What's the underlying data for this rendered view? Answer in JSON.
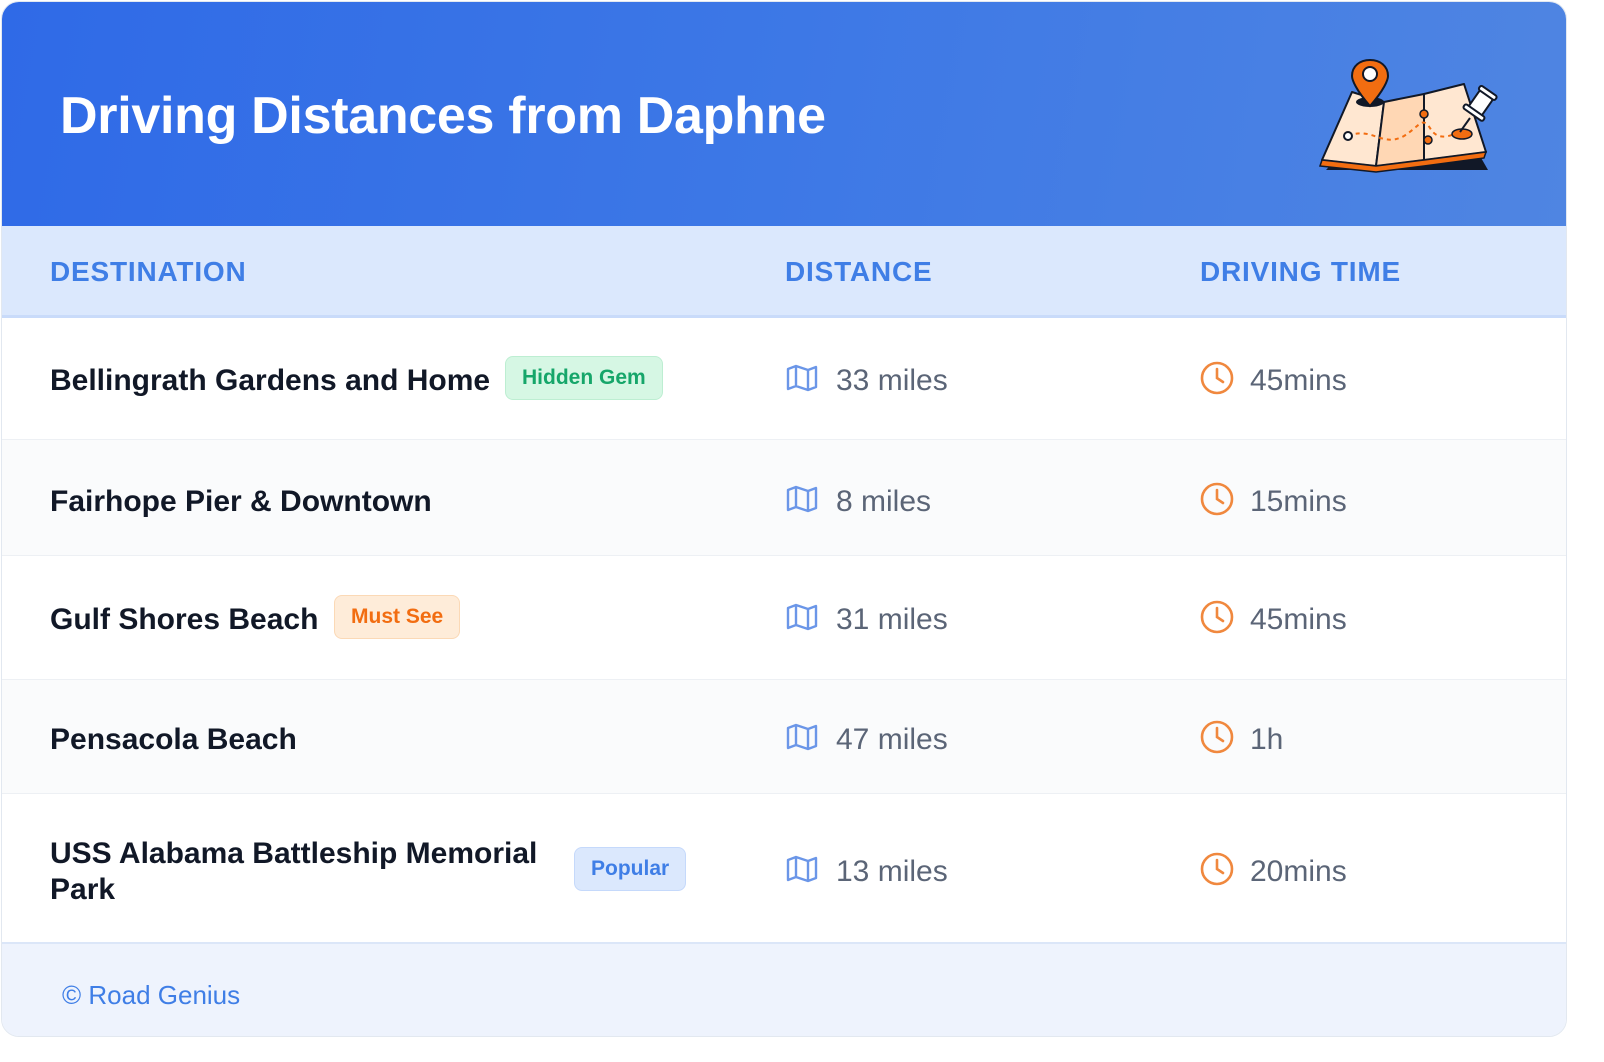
{
  "header": {
    "title": "Driving Distances from Daphne",
    "illustration": "map-with-pins-icon"
  },
  "table": {
    "columns": [
      "DESTINATION",
      "DISTANCE",
      "DRIVING TIME"
    ],
    "rows": [
      {
        "destination": "Bellingrath Gardens and Home",
        "badge": "Hidden Gem",
        "badge_color": "#16a66a",
        "distance": "33 miles",
        "time": "45mins"
      },
      {
        "destination": "Fairhope Pier & Downtown",
        "badge": "",
        "distance": "8 miles",
        "time": "15mins"
      },
      {
        "destination": "Gulf Shores Beach",
        "badge": "Must See",
        "badge_color": "#f26d11",
        "distance": "31 miles",
        "time": "45mins"
      },
      {
        "destination": "Pensacola Beach",
        "badge": "",
        "distance": "47 miles",
        "time": "1h"
      },
      {
        "destination": "USS Alabama Battleship Memorial Park",
        "badge": "Popular",
        "badge_color": "#3f7ee6",
        "distance": "13 miles",
        "time": "20mins"
      }
    ]
  },
  "footer": {
    "text": "© Road Genius"
  },
  "colors": {
    "header_gradient_start": "#2f6ae7",
    "header_gradient_end": "#4f85e2",
    "accent_blue": "#3f7ee6",
    "clock_orange": "#f0883e",
    "map_icon_blue": "#6b96e8"
  }
}
